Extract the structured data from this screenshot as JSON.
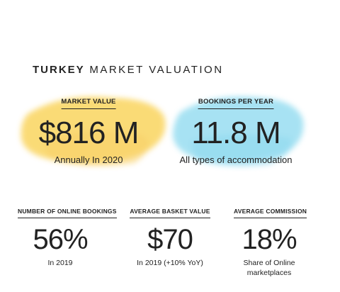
{
  "title": {
    "bold": "TURKEY",
    "rest": "MARKET VALUATION"
  },
  "top_stats": [
    {
      "label": "MARKET VALUE",
      "value": "$816 M",
      "note": "Annually In 2020"
    },
    {
      "label": "BOOKINGS PER YEAR",
      "value": "11.8 M",
      "note": "All types of accommodation"
    }
  ],
  "bottom_stats": [
    {
      "label": "NUMBER OF ONLINE  BOOKINGS",
      "value": "56%",
      "note": "In 2019"
    },
    {
      "label": "AVERAGE BASKET VALUE",
      "value": "$70",
      "note": "In 2019 (+10% YoY)"
    },
    {
      "label": "AVERAGE COMMISSION",
      "value": "18%",
      "note": "Share of Online marketplaces"
    }
  ]
}
